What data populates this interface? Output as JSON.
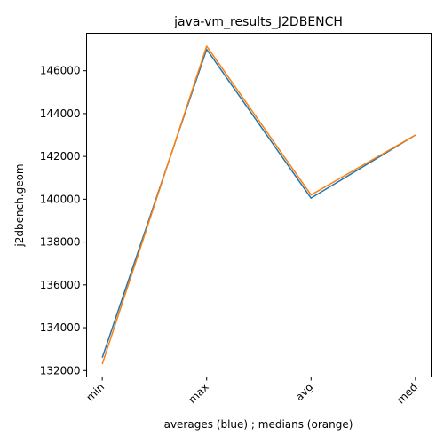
{
  "chart_data": {
    "type": "line",
    "title": "java-vm_results_J2DBENCH",
    "xlabel": "averages (blue) ; medians (orange)",
    "ylabel": "j2dbench.geom",
    "categories": [
      "min",
      "max",
      "avg",
      "med"
    ],
    "ylim": [
      131700,
      147750
    ],
    "yticks": [
      132000,
      134000,
      136000,
      138000,
      140000,
      142000,
      144000,
      146000
    ],
    "grid": false,
    "series": [
      {
        "color": "#1f77b4",
        "values": [
          132600,
          147000,
          140050,
          143000
        ]
      },
      {
        "color": "#ff7f0e",
        "values": [
          132300,
          147150,
          140200,
          143000
        ]
      }
    ]
  }
}
